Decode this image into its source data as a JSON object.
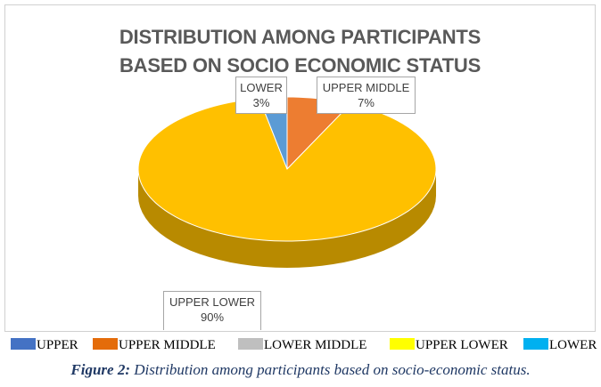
{
  "chart_data": {
    "type": "pie",
    "title_lines": [
      "DISTRIBUTION AMONG PARTICIPANTS",
      "BASED ON SOCIO ECONOMIC STATUS"
    ],
    "categories": [
      "UPPER",
      "UPPER MIDDLE",
      "LOWER MIDDLE",
      "UPPER LOWER",
      "LOWER"
    ],
    "values": [
      0,
      7,
      0,
      90,
      3
    ],
    "value_unit": "%",
    "colors": [
      "#4472c4",
      "#ed7d31",
      "#a5a5a5",
      "#ffc000",
      "#5b9bd5"
    ],
    "legend_colors": [
      "#4472c4",
      "#e46c0a",
      "#bfbfbf",
      "#ffff00",
      "#00b0f0"
    ],
    "legend_position": "bottom",
    "three_d": true,
    "data_labels": [
      {
        "name": "LOWER",
        "value": "3%"
      },
      {
        "name": "UPPER MIDDLE",
        "value": "7%"
      },
      {
        "name": "UPPER LOWER",
        "value": "90%"
      }
    ]
  },
  "caption": {
    "label": "Figure 2:",
    "text": " Distribution among participants based on socio-economic status."
  }
}
